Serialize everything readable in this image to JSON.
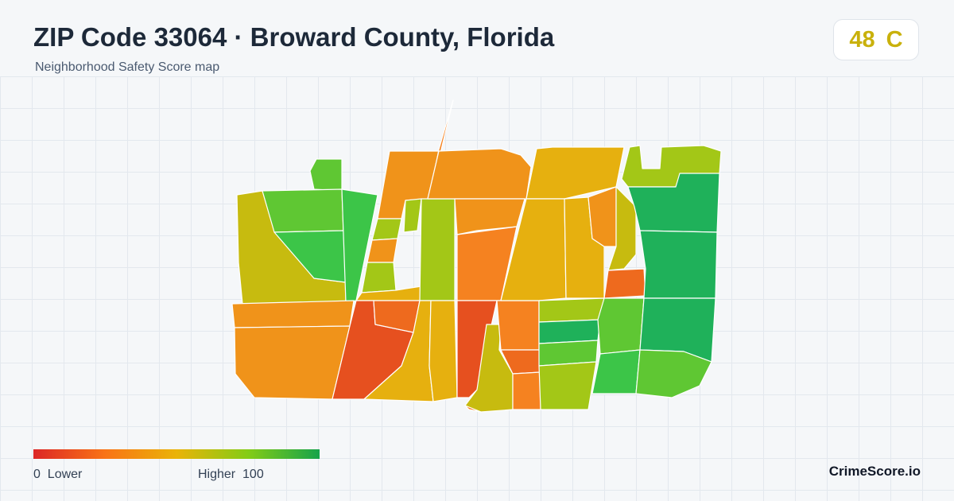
{
  "header": {
    "title": "ZIP Code 33064 · Broward County, Florida",
    "subtitle": "Neighborhood Safety Score map"
  },
  "score": {
    "value": "48",
    "grade": "C",
    "color": "#c9b10c"
  },
  "legend": {
    "min_value": "0",
    "min_label": "Lower",
    "max_label": "Higher",
    "max_value": "100",
    "colors": [
      "#dc2626",
      "#f97316",
      "#eab308",
      "#84cc16",
      "#16a34a"
    ]
  },
  "brand": "CrimeScore.io",
  "map": {
    "region_colors": {
      "red": "#e6501f",
      "red_orange": "#ee6a1e",
      "orange": "#f58220",
      "orange_amber": "#f0931a",
      "amber": "#e6b00f",
      "yellow_olive": "#c7bb0f",
      "yellow_green": "#a3c717",
      "lime": "#86cc1c",
      "light_green": "#5fc733",
      "green": "#3cc548",
      "dark_green": "#1fb15a"
    }
  }
}
